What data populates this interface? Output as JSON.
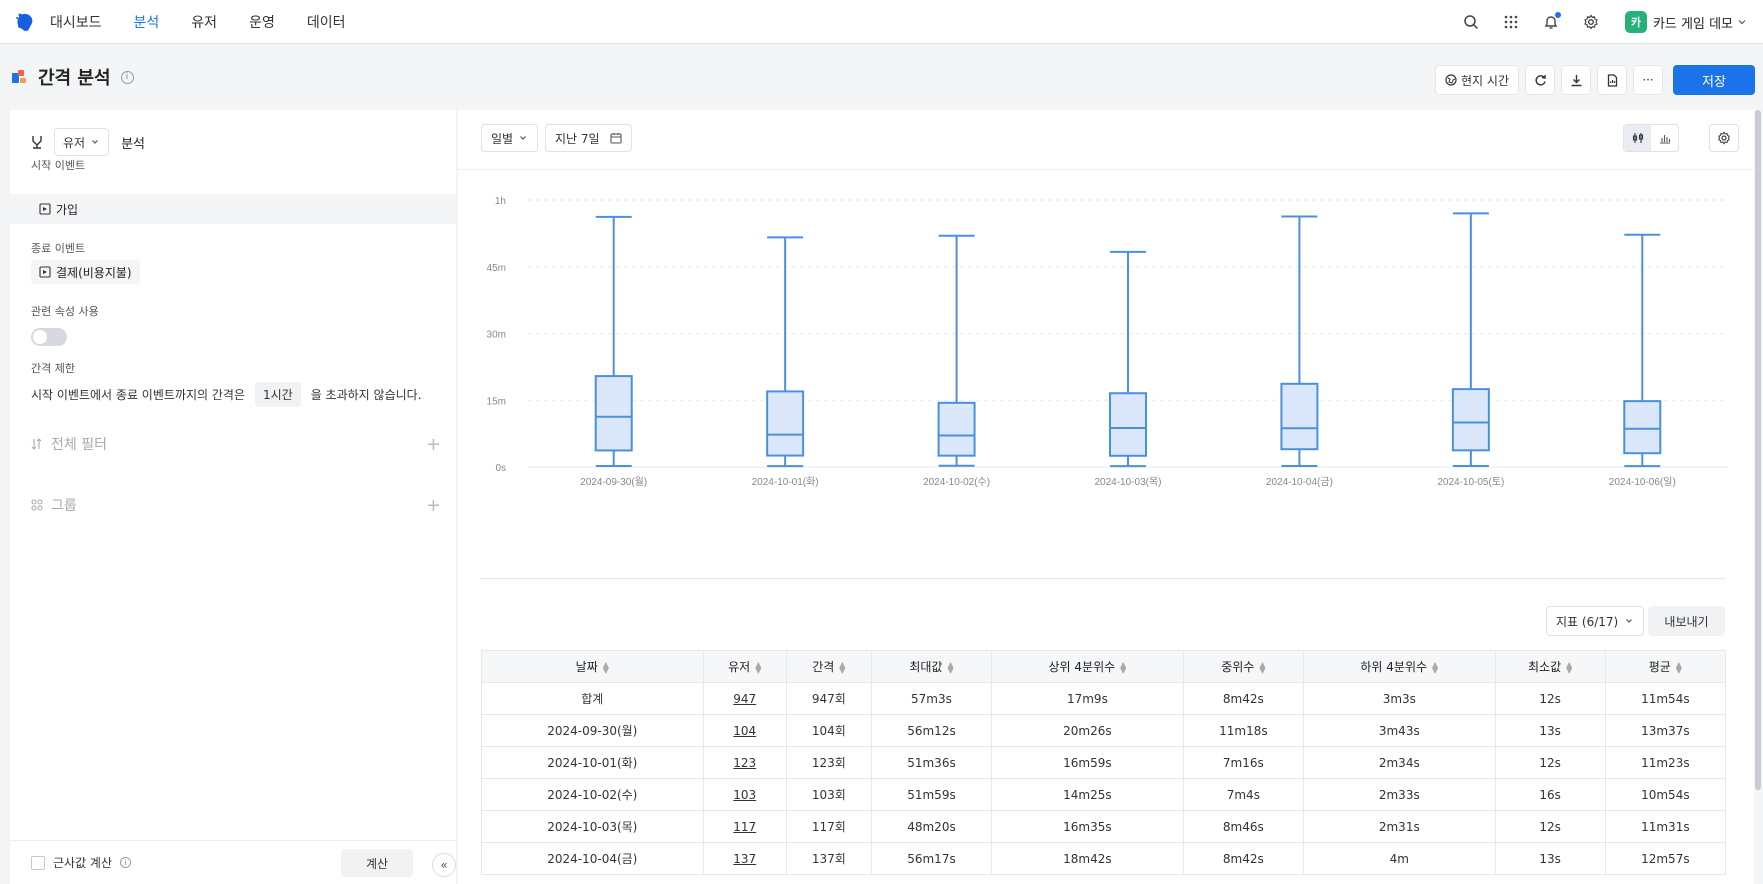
{
  "nav": {
    "items": [
      "대시보드",
      "분석",
      "유저",
      "운영",
      "데이터"
    ],
    "active_index": 1,
    "workspace_avatar": "카",
    "workspace_name": "카드 게임 데모"
  },
  "title": {
    "text": "간격 분석",
    "info": "i",
    "local_time_label": "현지 시간",
    "more_label": "···",
    "save_label": "저장"
  },
  "left": {
    "target_select": "유저",
    "analysis_label": "분석",
    "start_event_label": "시작 이벤트",
    "start_event": "가입",
    "end_event_label": "종료 이벤트",
    "end_event": "결제(비용지불)",
    "use_property_label": "관련 속성 사용",
    "use_property_enabled": false,
    "limit_label": "간격 제한",
    "limit_prefix": "시작 이벤트에서 종료 이벤트까지의 간격은",
    "limit_value": "1시간",
    "limit_suffix": "을 초과하지 않습니다.",
    "filter_label": "전체 필터",
    "group_label": "그룹",
    "approx_label": "근사값 계산",
    "calc_label": "계산",
    "collapse_label": "«"
  },
  "toolbar": {
    "granularity": "일별",
    "date_range": "지난 7일"
  },
  "chart_data": {
    "type": "boxplot",
    "categories": [
      "2024-09-30(월)",
      "2024-10-01(화)",
      "2024-10-02(수)",
      "2024-10-03(목)",
      "2024-10-04(금)",
      "2024-10-05(토)",
      "2024-10-06(일)"
    ],
    "min": [
      0.22,
      0.2,
      0.27,
      0.2,
      0.22,
      0.22,
      0.2
    ],
    "q1": [
      3.72,
      2.57,
      2.55,
      2.52,
      4.0,
      3.75,
      3.1
    ],
    "median": [
      11.3,
      7.27,
      7.07,
      8.77,
      8.7,
      10.0,
      8.6
    ],
    "q3": [
      20.43,
      16.98,
      14.42,
      16.58,
      18.7,
      17.5,
      14.8
    ],
    "max": [
      56.2,
      51.6,
      51.98,
      48.33,
      56.28,
      57.0,
      52.2
    ],
    "yticks": [
      "0s",
      "15m",
      "30m",
      "45m",
      "1h"
    ],
    "ytick_values": [
      0,
      15,
      30,
      45,
      60
    ],
    "ylim": [
      0,
      60
    ],
    "grid": true
  },
  "table": {
    "metric_select": "지표 (6/17)",
    "export_label": "내보내기",
    "columns": [
      "날짜",
      "유저",
      "간격",
      "최대값",
      "상위 4분위수",
      "중위수",
      "하위 4분위수",
      "최소값",
      "평균"
    ],
    "rows": [
      [
        "합계",
        "947",
        "947회",
        "57m3s",
        "17m9s",
        "8m42s",
        "3m3s",
        "12s",
        "11m54s"
      ],
      [
        "2024-09-30(월)",
        "104",
        "104회",
        "56m12s",
        "20m26s",
        "11m18s",
        "3m43s",
        "13s",
        "13m37s"
      ],
      [
        "2024-10-01(화)",
        "123",
        "123회",
        "51m36s",
        "16m59s",
        "7m16s",
        "2m34s",
        "12s",
        "11m23s"
      ],
      [
        "2024-10-02(수)",
        "103",
        "103회",
        "51m59s",
        "14m25s",
        "7m4s",
        "2m33s",
        "16s",
        "10m54s"
      ],
      [
        "2024-10-03(목)",
        "117",
        "117회",
        "48m20s",
        "16m35s",
        "8m46s",
        "2m31s",
        "12s",
        "11m31s"
      ],
      [
        "2024-10-04(금)",
        "137",
        "137회",
        "56m17s",
        "18m42s",
        "8m42s",
        "4m",
        "13s",
        "12m57s"
      ]
    ]
  },
  "colors": {
    "accent": "#1a73e8",
    "box_stroke": "#4a90e2",
    "box_fill": "#dbe8fb"
  }
}
